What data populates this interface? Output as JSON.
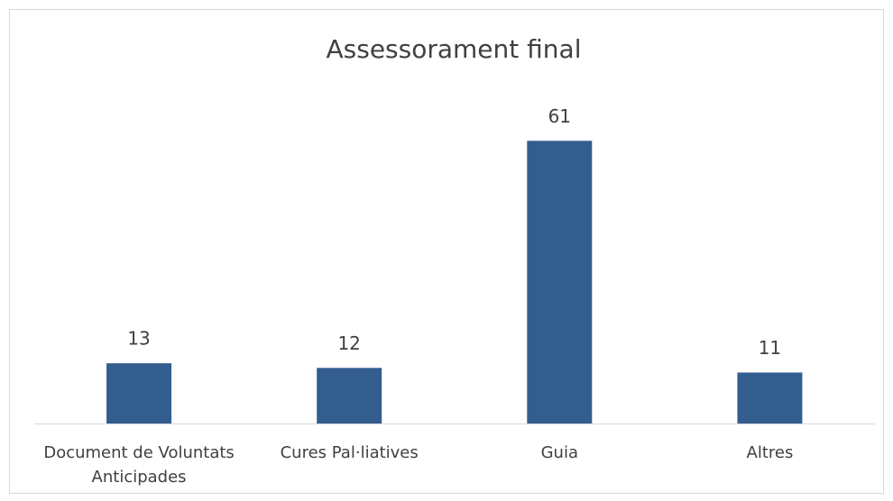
{
  "chart_data": {
    "type": "bar",
    "title": "Assessorament final",
    "categories": [
      "Document de Voluntats Anticipades",
      "Cures Pal·liatives",
      "Guia",
      "Altres"
    ],
    "values": [
      13,
      12,
      61,
      11
    ],
    "color": "#335d8f",
    "ylim": [
      0,
      70
    ],
    "data_labels": true
  }
}
